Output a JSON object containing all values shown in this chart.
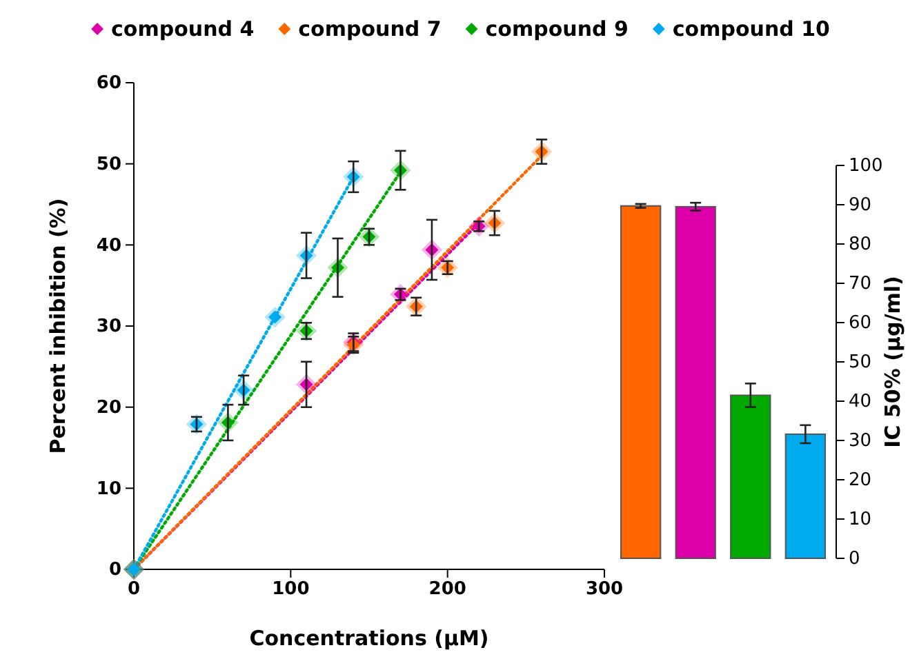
{
  "chart_data": [
    {
      "type": "scatter",
      "xlabel": "Concentrations (μM)",
      "ylabel": "Percent inhibition (%)",
      "xlim": [
        0,
        300
      ],
      "xticks": [
        0,
        100,
        200,
        300
      ],
      "ylim": [
        0,
        60
      ],
      "yticks": [
        0,
        10,
        20,
        30,
        40,
        50,
        60
      ],
      "grid": false,
      "legend": "top",
      "series": [
        {
          "name": "compound 4",
          "marker": "diamond",
          "color": "#dd00aa",
          "x": [
            0,
            110,
            140,
            170,
            190,
            220
          ],
          "values": [
            0,
            22.8,
            28.0,
            33.9,
            39.4,
            42.3
          ],
          "errors": [
            null,
            2.8,
            1.1,
            0.7,
            3.7,
            0.6
          ]
        },
        {
          "name": "compound 7",
          "marker": "diamond",
          "color": "#ff6600",
          "x": [
            0,
            140,
            180,
            200,
            230,
            260
          ],
          "values": [
            0,
            27.7,
            32.4,
            37.2,
            42.7,
            51.5
          ],
          "errors": [
            null,
            1,
            1.1,
            0.8,
            1.5,
            1.5
          ]
        },
        {
          "name": "compound 9",
          "marker": "diamond",
          "color": "#00aa00",
          "x": [
            0,
            60,
            110,
            130,
            150,
            170
          ],
          "values": [
            0,
            18.1,
            29.4,
            37.2,
            41.0,
            49.2
          ],
          "errors": [
            null,
            2.2,
            1,
            3.6,
            1,
            2.4
          ]
        },
        {
          "name": "compound 10",
          "marker": "diamond",
          "color": "#00aaee",
          "x": [
            0,
            40,
            70,
            90,
            110,
            140
          ],
          "values": [
            0,
            17.9,
            22.1,
            31.1,
            38.7,
            48.4
          ],
          "errors": [
            null,
            0.9,
            1.8,
            null,
            2.8,
            1.9
          ]
        },
        {
          "type": "line",
          "marker": "none",
          "color": "#dd00aa",
          "line_style": "dotted",
          "x": [
            0,
            220
          ],
          "values": [
            0,
            42.7
          ]
        },
        {
          "type": "line",
          "marker": "none",
          "color": "#ff6600",
          "line_style": "dotted",
          "x": [
            0,
            260
          ],
          "values": [
            0,
            51
          ]
        },
        {
          "type": "line",
          "marker": "none",
          "color": "#00aa00",
          "line_style": "dotted",
          "x": [
            0,
            170
          ],
          "values": [
            0,
            49
          ]
        },
        {
          "type": "line",
          "marker": "none",
          "color": "#00aaee",
          "line_style": "dotted",
          "x": [
            0,
            140
          ],
          "values": [
            0,
            48.4
          ]
        }
      ]
    },
    {
      "type": "bar",
      "ylabel": "IC 50%  (µg/ml)",
      "categories": [
        null,
        null,
        null,
        null
      ],
      "values": [
        89.7,
        89.5,
        41.5,
        31.6
      ],
      "errors": [
        0.5,
        1,
        3,
        2.3
      ],
      "colors": [
        "#ff6600",
        "#dd00aa",
        "#00aa00",
        "#00aaee"
      ],
      "ylim": [
        0,
        100
      ],
      "yticks": [
        0,
        10,
        20,
        30,
        40,
        50,
        60,
        70,
        80,
        90,
        100
      ],
      "grid": false
    }
  ]
}
